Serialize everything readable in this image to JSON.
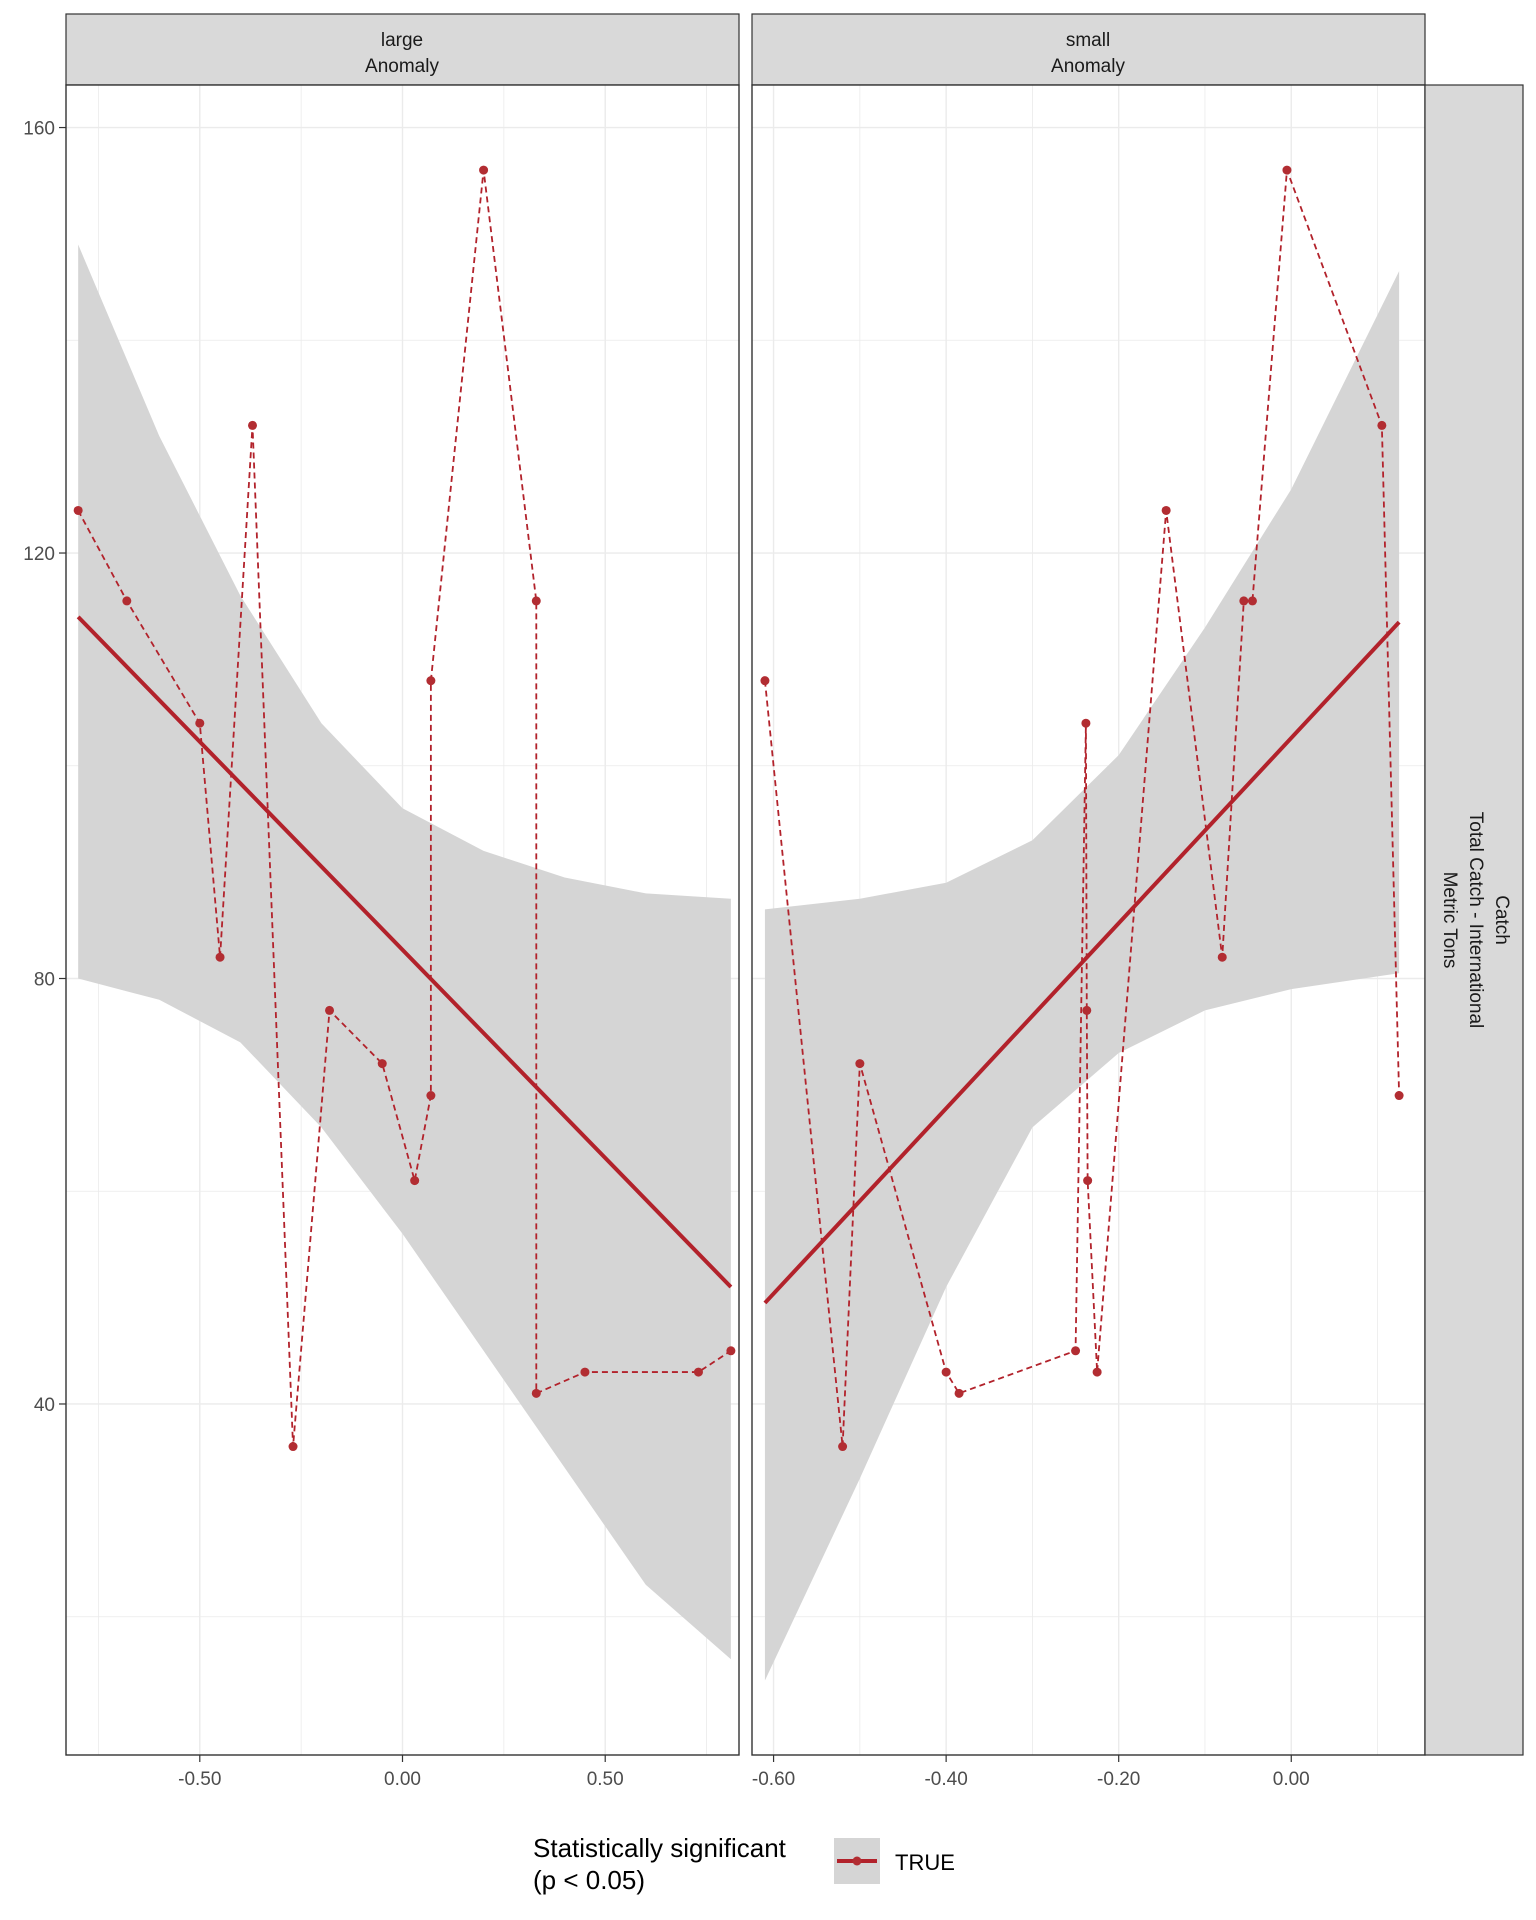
{
  "chart_data": [
    {
      "type": "scatter",
      "panel": "large",
      "strip_label_line1": "large",
      "strip_label_line2": "Anomaly",
      "xlim": [
        -0.83,
        0.83
      ],
      "ylim": [
        7,
        164
      ],
      "x_ticks": [
        -0.5,
        0.0,
        0.5
      ],
      "x_tick_labels": [
        "-0.50",
        "0.00",
        "0.50"
      ],
      "y_ticks": [
        40,
        80,
        120,
        160
      ],
      "y_tick_labels": [
        "40",
        "80",
        "120",
        "160"
      ],
      "points": [
        {
          "x": -0.8,
          "y": 124
        },
        {
          "x": -0.68,
          "y": 115.5
        },
        {
          "x": -0.5,
          "y": 104
        },
        {
          "x": -0.45,
          "y": 82
        },
        {
          "x": -0.37,
          "y": 132
        },
        {
          "x": -0.27,
          "y": 36
        },
        {
          "x": -0.18,
          "y": 77
        },
        {
          "x": -0.05,
          "y": 72
        },
        {
          "x": 0.03,
          "y": 61
        },
        {
          "x": 0.07,
          "y": 69
        },
        {
          "x": 0.07,
          "y": 108
        },
        {
          "x": 0.2,
          "y": 156
        },
        {
          "x": 0.33,
          "y": 115.5
        },
        {
          "x": 0.33,
          "y": 41
        },
        {
          "x": 0.45,
          "y": 43
        },
        {
          "x": 0.73,
          "y": 43
        },
        {
          "x": 0.81,
          "y": 45
        }
      ],
      "fit_line": [
        {
          "x": -0.8,
          "y": 114
        },
        {
          "x": 0.81,
          "y": 51
        }
      ],
      "ci_band": [
        {
          "x": -0.8,
          "lo": 80,
          "hi": 149
        },
        {
          "x": -0.6,
          "lo": 78,
          "hi": 131
        },
        {
          "x": -0.4,
          "lo": 74,
          "hi": 116
        },
        {
          "x": -0.2,
          "lo": 66,
          "hi": 104
        },
        {
          "x": 0.0,
          "lo": 56,
          "hi": 96
        },
        {
          "x": 0.2,
          "lo": 45,
          "hi": 92
        },
        {
          "x": 0.4,
          "lo": 34,
          "hi": 89.5
        },
        {
          "x": 0.6,
          "lo": 23,
          "hi": 88
        },
        {
          "x": 0.81,
          "lo": 16,
          "hi": 87.5
        }
      ]
    },
    {
      "type": "scatter",
      "panel": "small",
      "strip_label_line1": "small",
      "strip_label_line2": "Anomaly",
      "xlim": [
        -0.625,
        0.155
      ],
      "ylim": [
        7,
        164
      ],
      "x_ticks": [
        -0.6,
        -0.4,
        -0.2,
        0.0
      ],
      "x_tick_labels": [
        "-0.60",
        "-0.40",
        "-0.20",
        "0.00"
      ],
      "y_ticks": [
        40,
        80,
        120,
        160
      ],
      "points": [
        {
          "x": -0.61,
          "y": 108
        },
        {
          "x": -0.52,
          "y": 36
        },
        {
          "x": -0.5,
          "y": 72
        },
        {
          "x": -0.4,
          "y": 43
        },
        {
          "x": -0.385,
          "y": 41
        },
        {
          "x": -0.25,
          "y": 45
        },
        {
          "x": -0.238,
          "y": 104
        },
        {
          "x": -0.237,
          "y": 77
        },
        {
          "x": -0.236,
          "y": 61
        },
        {
          "x": -0.225,
          "y": 43
        },
        {
          "x": -0.145,
          "y": 124
        },
        {
          "x": -0.08,
          "y": 82
        },
        {
          "x": -0.055,
          "y": 115.5
        },
        {
          "x": -0.045,
          "y": 115.5
        },
        {
          "x": -0.005,
          "y": 156
        },
        {
          "x": 0.105,
          "y": 132
        },
        {
          "x": 0.125,
          "y": 69
        }
      ],
      "fit_line": [
        {
          "x": -0.61,
          "y": 49.5
        },
        {
          "x": 0.125,
          "y": 113.5
        }
      ],
      "ci_band": [
        {
          "x": -0.61,
          "lo": 14,
          "hi": 86.5
        },
        {
          "x": -0.5,
          "lo": 33,
          "hi": 87.5
        },
        {
          "x": -0.4,
          "lo": 51,
          "hi": 89
        },
        {
          "x": -0.3,
          "lo": 66,
          "hi": 93
        },
        {
          "x": -0.2,
          "lo": 73,
          "hi": 101
        },
        {
          "x": -0.1,
          "lo": 77,
          "hi": 113
        },
        {
          "x": 0.0,
          "lo": 79,
          "hi": 126
        },
        {
          "x": 0.125,
          "lo": 80.5,
          "hi": 146.5
        }
      ]
    }
  ],
  "strip_right_lines": [
    "Catch",
    "Total Catch - International",
    "Metric Tons"
  ],
  "legend": {
    "title_line1": "Statistically significant",
    "title_line2": "(p < 0.05)",
    "entry": "TRUE"
  },
  "colors": {
    "series": "#B2222B",
    "points": "#B22D32",
    "band": "#D5D5D5",
    "strip_bg": "#D9D9D9",
    "grid": "#EBEBEB"
  }
}
